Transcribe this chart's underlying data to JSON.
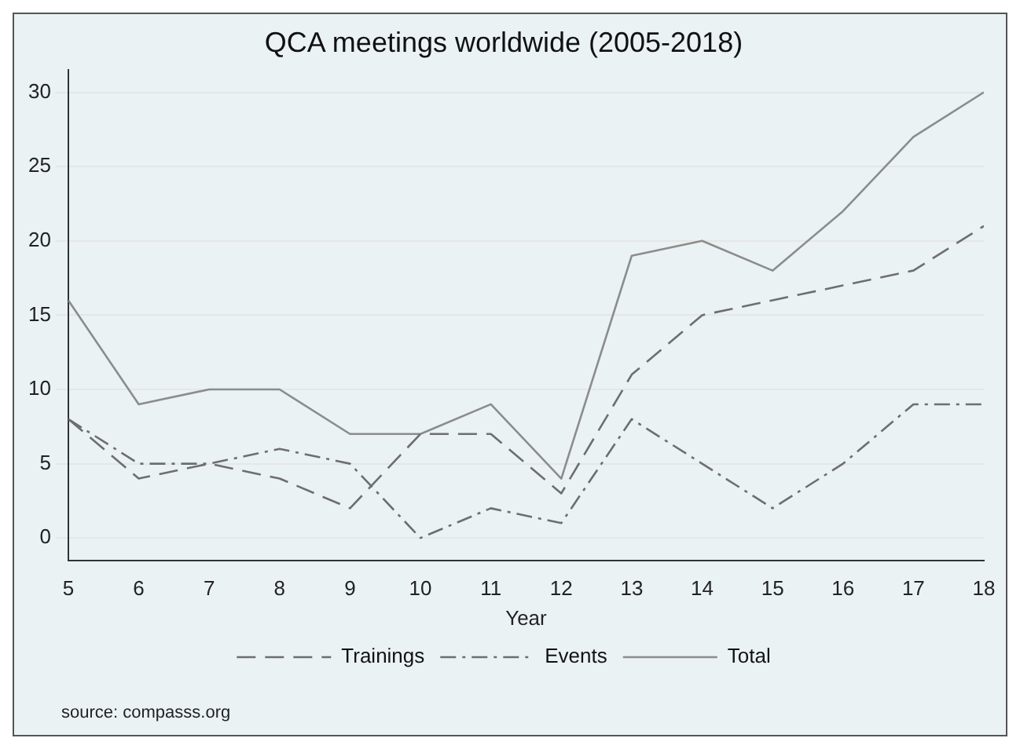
{
  "chart_data": {
    "type": "line",
    "title": "QCA meetings worldwide (2005-2018)",
    "xlabel": "Year",
    "x": [
      5,
      6,
      7,
      8,
      9,
      10,
      11,
      12,
      13,
      14,
      15,
      16,
      17,
      18
    ],
    "xlim": [
      5,
      18
    ],
    "xticks": [
      5,
      6,
      7,
      8,
      9,
      10,
      11,
      12,
      13,
      14,
      15,
      16,
      17,
      18
    ],
    "ylim": [
      -1.5,
      31.5
    ],
    "yticks": [
      0,
      5,
      10,
      15,
      20,
      25,
      30
    ],
    "grid": "y",
    "legend": "bottom",
    "marker": "none",
    "series": [
      {
        "name": "Trainings",
        "color": "#6e6e6e",
        "line_style": "dashed",
        "values": [
          8,
          4,
          5,
          4,
          2,
          7,
          7,
          3,
          11,
          15,
          16,
          17,
          18,
          21
        ]
      },
      {
        "name": "Events",
        "color": "#6e6e6e",
        "line_style": "dashdot",
        "values": [
          8,
          5,
          5,
          6,
          5,
          0,
          2,
          1,
          8,
          5,
          2,
          5,
          9,
          9
        ]
      },
      {
        "name": "Total",
        "color": "#8c8c8c",
        "line_style": "solid",
        "values": [
          16,
          9,
          10,
          10,
          7,
          7,
          9,
          4,
          19,
          20,
          18,
          22,
          27,
          30
        ]
      }
    ],
    "annotations": [
      "source: compasss.org"
    ]
  }
}
